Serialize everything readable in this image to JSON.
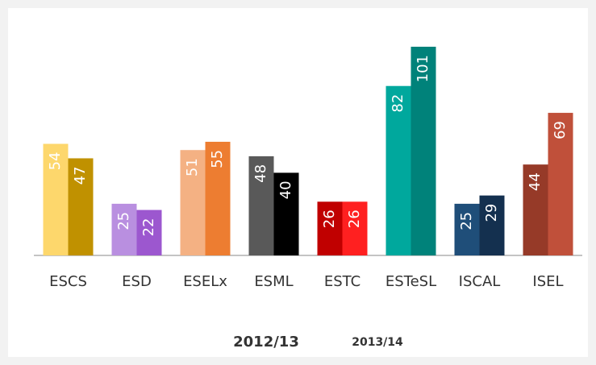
{
  "chart_data": {
    "type": "bar",
    "categories": [
      "ESCS",
      "ESD",
      "ESELx",
      "ESML",
      "ESTC",
      "ESTeSL",
      "ISCAL",
      "ISEL"
    ],
    "series": [
      {
        "name": "2012/13",
        "colors": [
          "#fdd76c",
          "#b98fe0",
          "#f4b183",
          "#595959",
          "#c00000",
          "#00a89d",
          "#1f4e79",
          "#963a28"
        ],
        "values": [
          54,
          25,
          51,
          48,
          26,
          82,
          25,
          44
        ]
      },
      {
        "name": "2013/14",
        "colors": [
          "#c09100",
          "#9c57cf",
          "#ed7d31",
          "#000000",
          "#ff2020",
          "#00827a",
          "#14304f",
          "#c0503a"
        ],
        "values": [
          47,
          22,
          55,
          40,
          26,
          101,
          29,
          69
        ]
      }
    ]
  }
}
